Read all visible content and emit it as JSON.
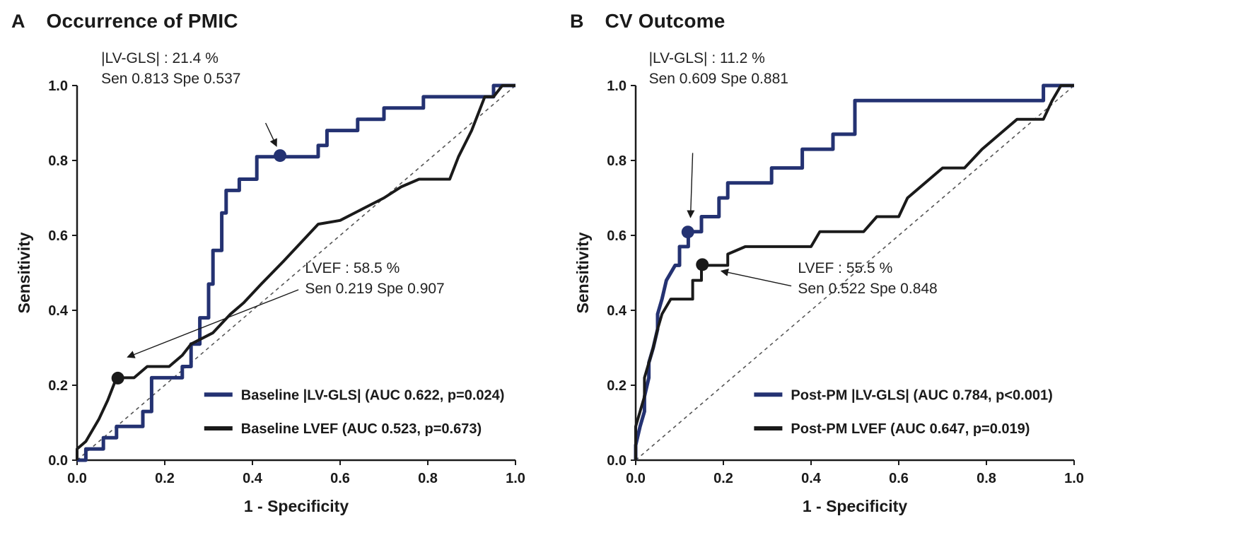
{
  "panels": [
    {
      "letter": "A",
      "title": "Occurrence of PMIC"
    },
    {
      "letter": "B",
      "title": "CV Outcome"
    }
  ],
  "colors": {
    "gls_blue": "#243272",
    "lvef_black": "#1a1a1a",
    "diagonal_gray": "#555555"
  },
  "chart_data": [
    {
      "type": "line",
      "title": "Occurrence of PMIC",
      "xlabel": "1 - Specificity",
      "ylabel": "Sensitivity",
      "xlim": [
        0,
        1
      ],
      "ylim": [
        0,
        1
      ],
      "grid": false,
      "diagonal_reference": true,
      "xtick_labels": [
        "0.0",
        "0.2",
        "0.4",
        "0.6",
        "0.8",
        "1.0"
      ],
      "ytick_labels": [
        "0.0",
        "0.2",
        "0.4",
        "0.6",
        "0.8",
        "1.0"
      ],
      "series": [
        {
          "name": "Baseline |LV-GLS| (AUC 0.622, p=0.024)",
          "auc": 0.622,
          "p_value": "p=0.024",
          "color": "#243272",
          "stroke_width": 5,
          "points": [
            [
              0.0,
              0.0
            ],
            [
              0.02,
              0.0
            ],
            [
              0.02,
              0.03
            ],
            [
              0.06,
              0.03
            ],
            [
              0.06,
              0.06
            ],
            [
              0.09,
              0.06
            ],
            [
              0.09,
              0.09
            ],
            [
              0.15,
              0.09
            ],
            [
              0.15,
              0.13
            ],
            [
              0.17,
              0.13
            ],
            [
              0.17,
              0.22
            ],
            [
              0.24,
              0.22
            ],
            [
              0.24,
              0.25
            ],
            [
              0.26,
              0.25
            ],
            [
              0.26,
              0.31
            ],
            [
              0.28,
              0.31
            ],
            [
              0.28,
              0.38
            ],
            [
              0.3,
              0.38
            ],
            [
              0.3,
              0.47
            ],
            [
              0.31,
              0.47
            ],
            [
              0.31,
              0.56
            ],
            [
              0.33,
              0.56
            ],
            [
              0.33,
              0.66
            ],
            [
              0.34,
              0.66
            ],
            [
              0.34,
              0.72
            ],
            [
              0.37,
              0.72
            ],
            [
              0.37,
              0.75
            ],
            [
              0.41,
              0.75
            ],
            [
              0.41,
              0.81
            ],
            [
              0.55,
              0.81
            ],
            [
              0.55,
              0.84
            ],
            [
              0.57,
              0.84
            ],
            [
              0.57,
              0.88
            ],
            [
              0.64,
              0.88
            ],
            [
              0.64,
              0.91
            ],
            [
              0.7,
              0.91
            ],
            [
              0.7,
              0.94
            ],
            [
              0.79,
              0.94
            ],
            [
              0.79,
              0.97
            ],
            [
              0.9,
              0.97
            ],
            [
              0.95,
              0.97
            ],
            [
              0.95,
              1.0
            ],
            [
              1.0,
              1.0
            ]
          ]
        },
        {
          "name": "Baseline LVEF (AUC 0.523, p=0.673)",
          "auc": 0.523,
          "p_value": "p=0.673",
          "color": "#1a1a1a",
          "stroke_width": 4,
          "points": [
            [
              0.0,
              0.0
            ],
            [
              0.0,
              0.03
            ],
            [
              0.02,
              0.05
            ],
            [
              0.05,
              0.11
            ],
            [
              0.07,
              0.16
            ],
            [
              0.09,
              0.22
            ],
            [
              0.13,
              0.22
            ],
            [
              0.16,
              0.25
            ],
            [
              0.21,
              0.25
            ],
            [
              0.24,
              0.28
            ],
            [
              0.26,
              0.31
            ],
            [
              0.31,
              0.34
            ],
            [
              0.35,
              0.39
            ],
            [
              0.38,
              0.42
            ],
            [
              0.42,
              0.47
            ],
            [
              0.47,
              0.53
            ],
            [
              0.51,
              0.58
            ],
            [
              0.55,
              0.63
            ],
            [
              0.6,
              0.64
            ],
            [
              0.65,
              0.67
            ],
            [
              0.7,
              0.7
            ],
            [
              0.74,
              0.73
            ],
            [
              0.78,
              0.75
            ],
            [
              0.85,
              0.75
            ],
            [
              0.87,
              0.81
            ],
            [
              0.9,
              0.88
            ],
            [
              0.93,
              0.97
            ],
            [
              0.95,
              0.97
            ],
            [
              0.97,
              1.0
            ],
            [
              1.0,
              1.0
            ]
          ]
        }
      ],
      "annotations": [
        {
          "lines": [
            "|LV-GLS| : 21.4 %",
            "Sen 0.813 Spe 0.537"
          ],
          "threshold": "21.4 %",
          "sensitivity": 0.813,
          "specificity": 0.537,
          "point": [
            0.463,
            0.813
          ],
          "point_color": "#243272",
          "label_pos": [
            0.055,
            1.06
          ],
          "arrow_from": [
            0.43,
            0.9
          ],
          "arrow_to": [
            0.455,
            0.838
          ]
        },
        {
          "lines": [
            "LVEF : 58.5 %",
            "Sen 0.219 Spe 0.907"
          ],
          "threshold": "58.5 %",
          "sensitivity": 0.219,
          "specificity": 0.907,
          "point": [
            0.093,
            0.219
          ],
          "point_color": "#1a1a1a",
          "label_pos": [
            0.52,
            0.5
          ],
          "arrow_from": [
            0.505,
            0.455
          ],
          "arrow_to": [
            0.115,
            0.275
          ]
        }
      ],
      "legend": {
        "position": "lower right",
        "x": 0.29,
        "y": 0.175,
        "row_gap": 0.09
      }
    },
    {
      "type": "line",
      "title": "CV Outcome",
      "xlabel": "1 - Specificity",
      "ylabel": "Sensitivity",
      "xlim": [
        0,
        1
      ],
      "ylim": [
        0,
        1
      ],
      "grid": false,
      "diagonal_reference": true,
      "xtick_labels": [
        "0.0",
        "0.2",
        "0.4",
        "0.6",
        "0.8",
        "1.0"
      ],
      "ytick_labels": [
        "0.0",
        "0.2",
        "0.4",
        "0.6",
        "0.8",
        "1.0"
      ],
      "series": [
        {
          "name": "Post-PM |LV-GLS| (AUC 0.784, p<0.001)",
          "auc": 0.784,
          "p_value": "p<0.001",
          "color": "#243272",
          "stroke_width": 5,
          "points": [
            [
              0.0,
              0.0
            ],
            [
              0.0,
              0.04
            ],
            [
              0.01,
              0.09
            ],
            [
              0.02,
              0.13
            ],
            [
              0.02,
              0.17
            ],
            [
              0.03,
              0.22
            ],
            [
              0.03,
              0.26
            ],
            [
              0.04,
              0.3
            ],
            [
              0.05,
              0.35
            ],
            [
              0.05,
              0.39
            ],
            [
              0.06,
              0.43
            ],
            [
              0.07,
              0.48
            ],
            [
              0.09,
              0.52
            ],
            [
              0.1,
              0.52
            ],
            [
              0.1,
              0.57
            ],
            [
              0.12,
              0.57
            ],
            [
              0.12,
              0.61
            ],
            [
              0.15,
              0.61
            ],
            [
              0.15,
              0.65
            ],
            [
              0.19,
              0.65
            ],
            [
              0.19,
              0.7
            ],
            [
              0.21,
              0.7
            ],
            [
              0.21,
              0.74
            ],
            [
              0.31,
              0.74
            ],
            [
              0.31,
              0.78
            ],
            [
              0.38,
              0.78
            ],
            [
              0.38,
              0.83
            ],
            [
              0.45,
              0.83
            ],
            [
              0.45,
              0.87
            ],
            [
              0.5,
              0.87
            ],
            [
              0.5,
              0.96
            ],
            [
              0.55,
              0.96
            ],
            [
              0.93,
              0.96
            ],
            [
              0.93,
              1.0
            ],
            [
              1.0,
              1.0
            ]
          ]
        },
        {
          "name": "Post-PM LVEF (AUC 0.647, p=0.019)",
          "auc": 0.647,
          "p_value": "p=0.019",
          "color": "#1a1a1a",
          "stroke_width": 4,
          "points": [
            [
              0.0,
              0.0
            ],
            [
              0.0,
              0.09
            ],
            [
              0.01,
              0.13
            ],
            [
              0.02,
              0.17
            ],
            [
              0.02,
              0.22
            ],
            [
              0.03,
              0.26
            ],
            [
              0.04,
              0.3
            ],
            [
              0.05,
              0.35
            ],
            [
              0.06,
              0.39
            ],
            [
              0.08,
              0.43
            ],
            [
              0.13,
              0.43
            ],
            [
              0.13,
              0.48
            ],
            [
              0.15,
              0.48
            ],
            [
              0.15,
              0.52
            ],
            [
              0.21,
              0.52
            ],
            [
              0.21,
              0.55
            ],
            [
              0.25,
              0.57
            ],
            [
              0.4,
              0.57
            ],
            [
              0.42,
              0.61
            ],
            [
              0.52,
              0.61
            ],
            [
              0.55,
              0.65
            ],
            [
              0.6,
              0.65
            ],
            [
              0.62,
              0.7
            ],
            [
              0.66,
              0.74
            ],
            [
              0.7,
              0.78
            ],
            [
              0.75,
              0.78
            ],
            [
              0.79,
              0.83
            ],
            [
              0.83,
              0.87
            ],
            [
              0.87,
              0.91
            ],
            [
              0.93,
              0.91
            ],
            [
              0.95,
              0.96
            ],
            [
              0.97,
              1.0
            ],
            [
              1.0,
              1.0
            ]
          ]
        }
      ],
      "annotations": [
        {
          "lines": [
            "|LV-GLS| : 11.2 %",
            "Sen 0.609 Spe 0.881"
          ],
          "threshold": "11.2 %",
          "sensitivity": 0.609,
          "specificity": 0.881,
          "point": [
            0.119,
            0.609
          ],
          "point_color": "#243272",
          "label_pos": [
            0.03,
            1.06
          ],
          "arrow_from": [
            0.13,
            0.82
          ],
          "arrow_to": [
            0.125,
            0.648
          ]
        },
        {
          "lines": [
            "LVEF : 55.5 %",
            "Sen 0.522 Spe 0.848"
          ],
          "threshold": "55.5 %",
          "sensitivity": 0.522,
          "specificity": 0.848,
          "point": [
            0.152,
            0.522
          ],
          "point_color": "#1a1a1a",
          "label_pos": [
            0.37,
            0.5
          ],
          "arrow_from": [
            0.355,
            0.465
          ],
          "arrow_to": [
            0.195,
            0.505
          ]
        }
      ],
      "legend": {
        "position": "lower right",
        "x": 0.27,
        "y": 0.175,
        "row_gap": 0.09
      }
    }
  ]
}
